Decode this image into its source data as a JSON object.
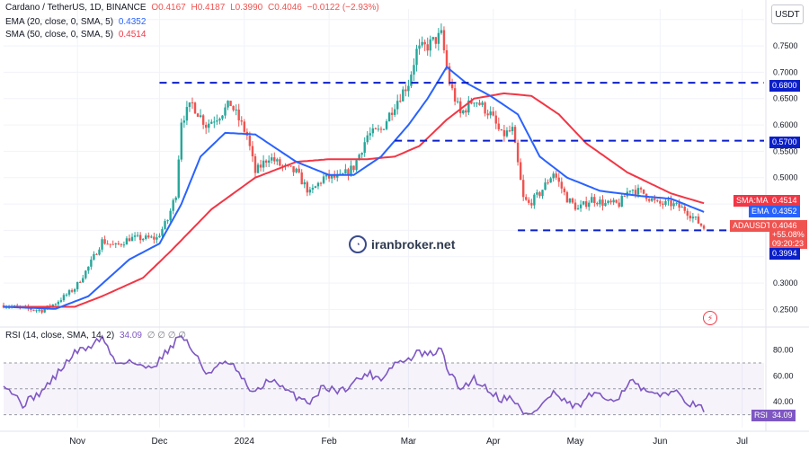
{
  "legend": {
    "title": "Cardano / TetherUS, 1D, BINANCE",
    "o": "O0.4167",
    "h": "H0.4187",
    "l": "L0.3990",
    "c": "C0.4046",
    "chg": "−0.0122 (−2.93%)",
    "ema": "EMA (20, close, 0, SMA, 5)",
    "ema_val": "0.4352",
    "sma": "SMA (50, close, 0, SMA, 5)",
    "sma_val": "0.4514",
    "rsi": "RSI (14, close, SMA, 14, 2)",
    "rsi_val": "34.09",
    "rsi_extra": "∅ ∅ ∅ ∅"
  },
  "currency": "USDT",
  "watermark": "iranbroker.net",
  "colors": {
    "up": "#26a69a",
    "down": "#ef5350",
    "ema": "#2962ff",
    "sma": "#f23645",
    "level": "#0b1fc9",
    "rsi": "#7e57c2",
    "grid": "#f0f3fa"
  },
  "tags": {
    "level_068": "0.6800",
    "level_057": "0.5700",
    "sma_label": "SMA:MA",
    "sma_price": "0.4514",
    "ema_label": "EMA",
    "ema_price": "0.4352",
    "price_label": "ADAUSDT",
    "price": "0.4046",
    "price_pct": "+55.08%",
    "countdown": "09:20:23",
    "low": "0.3994",
    "rsi_label": "RSI",
    "rsi_price": "34.09"
  },
  "chart_data": {
    "type": "candlestick",
    "symbol": "ADAUSDT",
    "price_axis": {
      "ticks": [
        0.25,
        0.3,
        0.35,
        0.4,
        0.45,
        0.5,
        0.55,
        0.6,
        0.65,
        0.7,
        0.75,
        0.8
      ],
      "tick_labels": [
        "0.2500",
        "0.3000",
        "",
        "",
        "",
        "0.5000",
        "0.5500",
        "0.6000",
        "0.6500",
        "0.7000",
        "0.7500",
        "0.8000"
      ],
      "range": [
        0.22,
        0.82
      ]
    },
    "x_axis": {
      "labels": [
        "Nov",
        "Dec",
        "2024",
        "Feb",
        "Mar",
        "Apr",
        "May",
        "Jun",
        "Jul"
      ],
      "label_dates": [
        "2023-11-01",
        "2023-12-01",
        "2024-01-01",
        "2024-02-01",
        "2024-03-01",
        "2024-04-01",
        "2024-05-01",
        "2024-06-01",
        "2024-07-01"
      ],
      "start": "2023-10-05",
      "end": "2024-07-09"
    },
    "horizontal_levels": [
      0.68,
      0.57,
      0.4
    ],
    "close_anchors": [
      [
        "2023-10-05",
        0.258
      ],
      [
        "2023-10-12",
        0.252
      ],
      [
        "2023-10-19",
        0.248
      ],
      [
        "2023-10-24",
        0.262
      ],
      [
        "2023-10-31",
        0.29
      ],
      [
        "2023-11-05",
        0.33
      ],
      [
        "2023-11-10",
        0.38
      ],
      [
        "2023-11-15",
        0.37
      ],
      [
        "2023-11-20",
        0.385
      ],
      [
        "2023-11-25",
        0.385
      ],
      [
        "2023-11-30",
        0.385
      ],
      [
        "2023-12-04",
        0.42
      ],
      [
        "2023-12-07",
        0.47
      ],
      [
        "2023-12-09",
        0.61
      ],
      [
        "2023-12-13",
        0.64
      ],
      [
        "2023-12-18",
        0.6
      ],
      [
        "2023-12-23",
        0.62
      ],
      [
        "2023-12-27",
        0.64
      ],
      [
        "2024-01-02",
        0.58
      ],
      [
        "2024-01-05",
        0.51
      ],
      [
        "2024-01-10",
        0.54
      ],
      [
        "2024-01-15",
        0.52
      ],
      [
        "2024-01-20",
        0.51
      ],
      [
        "2024-01-25",
        0.47
      ],
      [
        "2024-01-30",
        0.5
      ],
      [
        "2024-02-05",
        0.5
      ],
      [
        "2024-02-10",
        0.52
      ],
      [
        "2024-02-15",
        0.58
      ],
      [
        "2024-02-20",
        0.59
      ],
      [
        "2024-02-25",
        0.64
      ],
      [
        "2024-03-01",
        0.68
      ],
      [
        "2024-03-04",
        0.74
      ],
      [
        "2024-03-08",
        0.75
      ],
      [
        "2024-03-13",
        0.77
      ],
      [
        "2024-03-16",
        0.68
      ],
      [
        "2024-03-20",
        0.62
      ],
      [
        "2024-03-25",
        0.65
      ],
      [
        "2024-03-31",
        0.62
      ],
      [
        "2024-04-04",
        0.58
      ],
      [
        "2024-04-08",
        0.59
      ],
      [
        "2024-04-12",
        0.46
      ],
      [
        "2024-04-14",
        0.45
      ],
      [
        "2024-04-18",
        0.47
      ],
      [
        "2024-04-23",
        0.51
      ],
      [
        "2024-04-28",
        0.46
      ],
      [
        "2024-05-02",
        0.44
      ],
      [
        "2024-05-07",
        0.46
      ],
      [
        "2024-05-12",
        0.45
      ],
      [
        "2024-05-17",
        0.45
      ],
      [
        "2024-05-21",
        0.48
      ],
      [
        "2024-05-26",
        0.47
      ],
      [
        "2024-05-31",
        0.45
      ],
      [
        "2024-06-05",
        0.45
      ],
      [
        "2024-06-10",
        0.44
      ],
      [
        "2024-06-14",
        0.42
      ],
      [
        "2024-06-17",
        0.405
      ]
    ],
    "ema20_anchors": [
      [
        "2023-10-05",
        0.255
      ],
      [
        "2023-10-24",
        0.251
      ],
      [
        "2023-11-05",
        0.275
      ],
      [
        "2023-11-20",
        0.345
      ],
      [
        "2023-12-01",
        0.375
      ],
      [
        "2023-12-09",
        0.45
      ],
      [
        "2023-12-16",
        0.54
      ],
      [
        "2023-12-25",
        0.585
      ],
      [
        "2024-01-05",
        0.582
      ],
      [
        "2024-01-20",
        0.53
      ],
      [
        "2024-02-01",
        0.505
      ],
      [
        "2024-02-10",
        0.505
      ],
      [
        "2024-02-20",
        0.54
      ],
      [
        "2024-03-01",
        0.6
      ],
      [
        "2024-03-08",
        0.65
      ],
      [
        "2024-03-15",
        0.71
      ],
      [
        "2024-03-22",
        0.68
      ],
      [
        "2024-03-31",
        0.655
      ],
      [
        "2024-04-10",
        0.62
      ],
      [
        "2024-04-18",
        0.54
      ],
      [
        "2024-04-28",
        0.5
      ],
      [
        "2024-05-10",
        0.475
      ],
      [
        "2024-05-25",
        0.465
      ],
      [
        "2024-06-05",
        0.46
      ],
      [
        "2024-06-17",
        0.435
      ]
    ],
    "sma50_anchors": [
      [
        "2023-10-05",
        0.255
      ],
      [
        "2023-10-31",
        0.255
      ],
      [
        "2023-11-10",
        0.275
      ],
      [
        "2023-11-25",
        0.31
      ],
      [
        "2023-12-05",
        0.36
      ],
      [
        "2023-12-20",
        0.44
      ],
      [
        "2024-01-05",
        0.5
      ],
      [
        "2024-01-20",
        0.53
      ],
      [
        "2024-02-01",
        0.535
      ],
      [
        "2024-02-15",
        0.535
      ],
      [
        "2024-02-25",
        0.54
      ],
      [
        "2024-03-05",
        0.56
      ],
      [
        "2024-03-15",
        0.61
      ],
      [
        "2024-03-25",
        0.65
      ],
      [
        "2024-04-05",
        0.66
      ],
      [
        "2024-04-15",
        0.655
      ],
      [
        "2024-04-25",
        0.62
      ],
      [
        "2024-05-05",
        0.565
      ],
      [
        "2024-05-20",
        0.51
      ],
      [
        "2024-06-05",
        0.47
      ],
      [
        "2024-06-17",
        0.4514
      ]
    ],
    "rsi_axis": {
      "ticks": [
        40,
        60,
        80
      ],
      "tick_labels": [
        "40.00",
        "60.00",
        "80.00"
      ],
      "range": [
        20,
        95
      ],
      "bands": [
        30,
        50,
        70
      ]
    },
    "rsi_anchors": [
      [
        "2023-10-05",
        55
      ],
      [
        "2023-10-12",
        38
      ],
      [
        "2023-10-19",
        48
      ],
      [
        "2023-10-24",
        60
      ],
      [
        "2023-10-31",
        78
      ],
      [
        "2023-11-05",
        82
      ],
      [
        "2023-11-10",
        90
      ],
      [
        "2023-11-15",
        70
      ],
      [
        "2023-11-20",
        72
      ],
      [
        "2023-11-25",
        66
      ],
      [
        "2023-11-30",
        70
      ],
      [
        "2023-12-04",
        80
      ],
      [
        "2023-12-09",
        92
      ],
      [
        "2023-12-13",
        80
      ],
      [
        "2023-12-18",
        62
      ],
      [
        "2023-12-23",
        68
      ],
      [
        "2023-12-27",
        70
      ],
      [
        "2024-01-02",
        52
      ],
      [
        "2024-01-05",
        46
      ],
      [
        "2024-01-10",
        58
      ],
      [
        "2024-01-15",
        50
      ],
      [
        "2024-01-20",
        44
      ],
      [
        "2024-01-25",
        40
      ],
      [
        "2024-01-30",
        52
      ],
      [
        "2024-02-05",
        48
      ],
      [
        "2024-02-10",
        55
      ],
      [
        "2024-02-15",
        62
      ],
      [
        "2024-02-20",
        58
      ],
      [
        "2024-02-25",
        70
      ],
      [
        "2024-03-01",
        72
      ],
      [
        "2024-03-04",
        78
      ],
      [
        "2024-03-08",
        76
      ],
      [
        "2024-03-13",
        80
      ],
      [
        "2024-03-16",
        62
      ],
      [
        "2024-03-20",
        50
      ],
      [
        "2024-03-25",
        58
      ],
      [
        "2024-03-31",
        48
      ],
      [
        "2024-04-04",
        42
      ],
      [
        "2024-04-08",
        44
      ],
      [
        "2024-04-12",
        30
      ],
      [
        "2024-04-14",
        30
      ],
      [
        "2024-04-18",
        36
      ],
      [
        "2024-04-23",
        47
      ],
      [
        "2024-04-28",
        38
      ],
      [
        "2024-05-02",
        36
      ],
      [
        "2024-05-07",
        46
      ],
      [
        "2024-05-12",
        42
      ],
      [
        "2024-05-17",
        44
      ],
      [
        "2024-05-21",
        57
      ],
      [
        "2024-05-26",
        48
      ],
      [
        "2024-05-31",
        44
      ],
      [
        "2024-06-05",
        49
      ],
      [
        "2024-06-10",
        42
      ],
      [
        "2024-06-14",
        36
      ],
      [
        "2024-06-17",
        34.09
      ]
    ],
    "candle_count": 257
  }
}
